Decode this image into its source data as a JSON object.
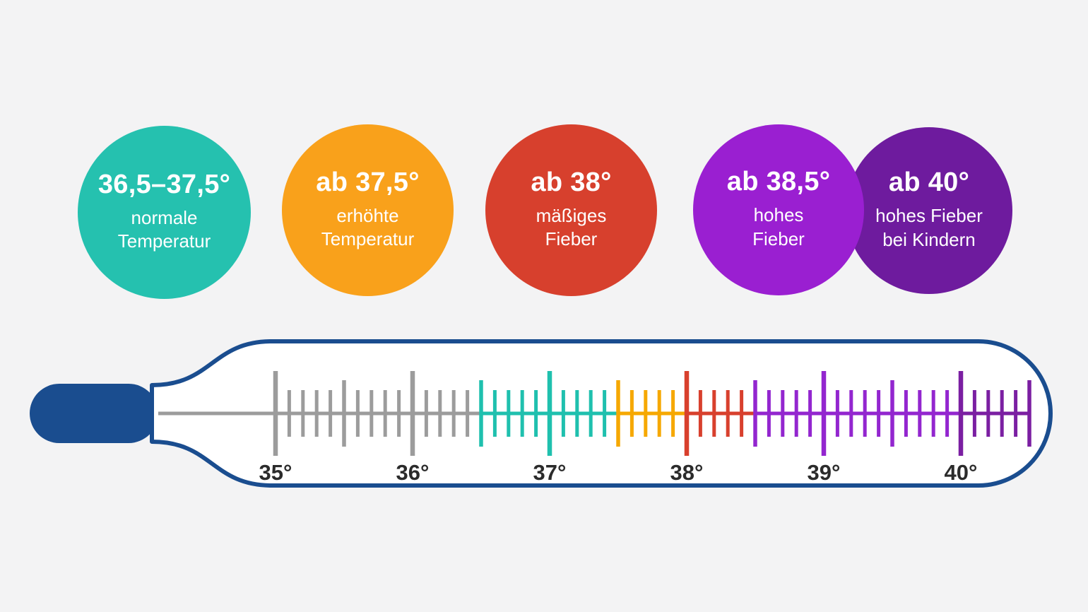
{
  "background_color": "#f3f3f4",
  "legend": {
    "circles": [
      {
        "title": "36,5–37,5°",
        "subtitle": "normale\nTemperatur",
        "color": "#25c1af"
      },
      {
        "title": "ab 37,5°",
        "subtitle": "erhöhte\nTemperatur",
        "color": "#f9a11b"
      },
      {
        "title": "ab 38°",
        "subtitle": "mäßiges\nFieber",
        "color": "#d7402d"
      },
      {
        "title": "ab 38,5°",
        "subtitle": "hohes\nFieber",
        "color": "#9a1fd1"
      },
      {
        "title": "ab 40°",
        "subtitle": "hohes Fieber\nbei Kindern",
        "color": "#6e1b9e"
      }
    ]
  },
  "thermometer": {
    "outline_color": "#1a4d8f",
    "bulb_color": "#1a4d8f",
    "label_color": "#2b2b2b",
    "tick_labels": [
      "35°",
      "36°",
      "37°",
      "38°",
      "39°",
      "40°"
    ],
    "scale": {
      "min": 35,
      "max": 40.5,
      "step": 0.1
    },
    "ranges": [
      {
        "name": "below-normal",
        "from": 34.0,
        "to": 36.5,
        "color": "#9c9c9c"
      },
      {
        "name": "normale-temperatur",
        "from": 36.5,
        "to": 37.5,
        "color": "#1fc0ae"
      },
      {
        "name": "erhoehte-temperatur",
        "from": 37.5,
        "to": 38.0,
        "color": "#f6a800"
      },
      {
        "name": "maessiges-fieber",
        "from": 38.0,
        "to": 38.5,
        "color": "#d8402d"
      },
      {
        "name": "hohes-fieber",
        "from": 38.5,
        "to": 40.0,
        "color": "#9326cf"
      },
      {
        "name": "hohes-fieber-bei-kindern",
        "from": 40.0,
        "to": 40.6,
        "color": "#7b1fa2"
      }
    ]
  }
}
